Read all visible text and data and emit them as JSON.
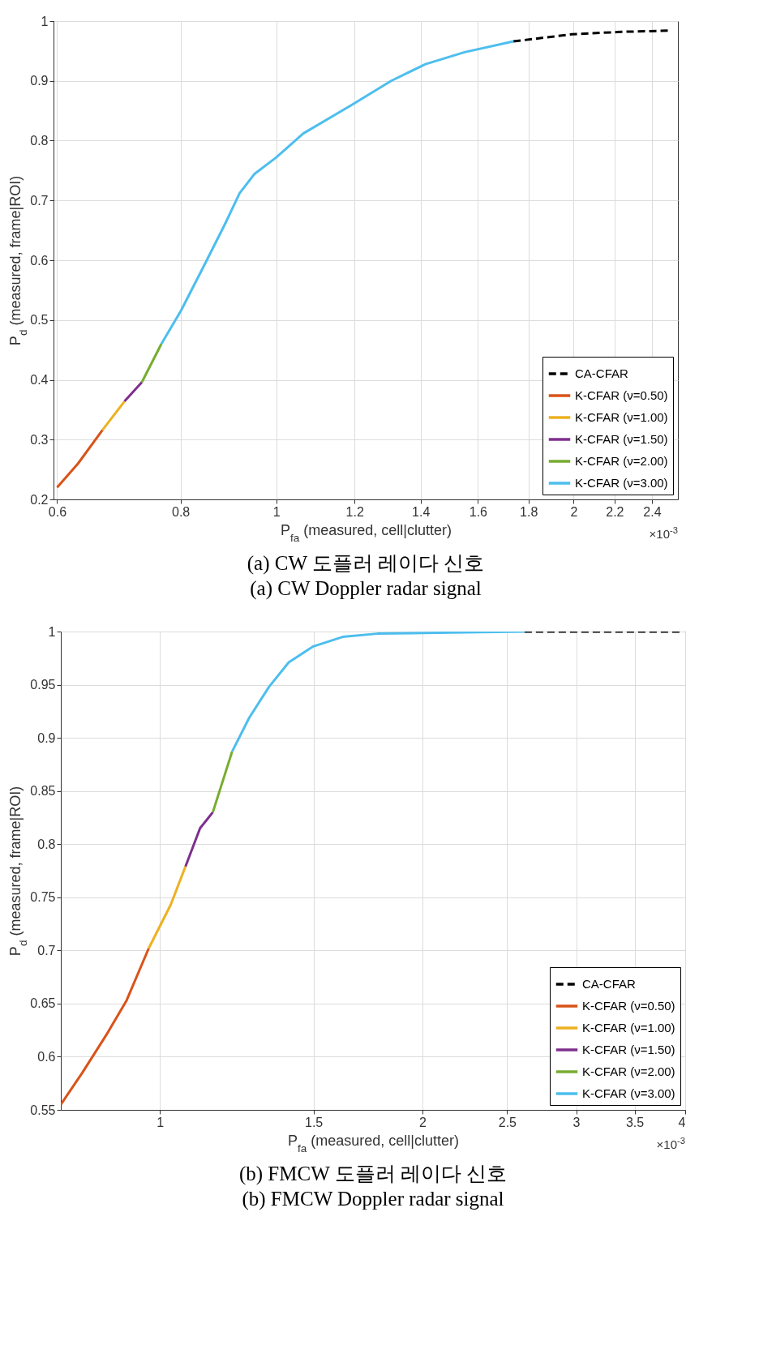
{
  "chart_data": [
    {
      "type": "line",
      "title": "(a) CW 도플러 레이다 신호",
      "subtitle": "(a) CW Doppler radar signal",
      "xlabel": "P$_{fa}$ (measured, cell|clutter)",
      "ylabel": "P$_{d}$ (measured, frame|ROI)",
      "log": "x",
      "xlim": [
        0.595,
        2.55
      ],
      "xticks": [
        0.6,
        0.8,
        1,
        1.2,
        1.4,
        1.6,
        1.8,
        2,
        2.2,
        2.4
      ],
      "ylim": [
        0.2,
        1
      ],
      "yticks": [
        0.2,
        0.3,
        0.4,
        0.5,
        0.6,
        0.7,
        0.8,
        0.9,
        1
      ],
      "grid": true,
      "legend": "bottom right",
      "annotations": [
        "×10$^{-3}$"
      ],
      "series": [
        {
          "name": "CA-CFAR",
          "color": "#000000",
          "line_style": "dashed",
          "x": [
            1.738,
            1.993,
            2.234,
            2.503
          ],
          "values": [
            0.966,
            0.978,
            0.982,
            0.984
          ]
        },
        {
          "name": "K-CFAR (ν=0.50)",
          "color": "#d95319",
          "line_style": "solid",
          "x": [
            0.6,
            0.63,
            0.667
          ],
          "values": [
            0.22,
            0.26,
            0.316
          ]
        },
        {
          "name": "K-CFAR (ν=1.00)",
          "color": "#edb120",
          "line_style": "solid",
          "x": [
            0.667,
            0.702
          ],
          "values": [
            0.316,
            0.364
          ]
        },
        {
          "name": "K-CFAR (ν=1.50)",
          "color": "#7e2f8e",
          "line_style": "solid",
          "x": [
            0.702,
            0.731
          ],
          "values": [
            0.364,
            0.396
          ]
        },
        {
          "name": "K-CFAR (ν=2.00)",
          "color": "#77ac30",
          "line_style": "solid",
          "x": [
            0.731,
            0.765
          ],
          "values": [
            0.396,
            0.46
          ]
        },
        {
          "name": "K-CFAR (ν=3.00)",
          "color": "#4dbeee",
          "line_style": "solid",
          "x": [
            0.765,
            0.801,
            0.848,
            0.887,
            0.918,
            0.95,
            1.0,
            1.065,
            1.193,
            1.307,
            1.416,
            1.551,
            1.738
          ],
          "values": [
            0.46,
            0.516,
            0.596,
            0.66,
            0.712,
            0.744,
            0.772,
            0.812,
            0.86,
            0.9,
            0.928,
            0.948,
            0.966
          ]
        }
      ]
    },
    {
      "type": "line",
      "title": "(b) FMCW 도플러 레이다 신호",
      "subtitle": "(b) FMCW Doppler radar signal",
      "xlabel": "P$_{fa}$ (measured, cell|clutter)",
      "ylabel": "P$_{d}$ (measured, frame|ROI)",
      "log": "x",
      "xlim": [
        0.77,
        4
      ],
      "xticks": [
        1,
        1.5,
        2,
        2.5,
        3,
        3.5,
        4
      ],
      "ylim": [
        0.55,
        1
      ],
      "yticks": [
        0.55,
        0.6,
        0.65,
        0.7,
        0.75,
        0.8,
        0.85,
        0.9,
        0.95,
        1
      ],
      "grid": true,
      "legend": "bottom right",
      "annotations": [
        "×10$^{-3}$"
      ],
      "series": [
        {
          "name": "CA-CFAR",
          "color": "#000000",
          "line_style": "dashed",
          "x": [
            2.618,
            3.97
          ],
          "values": [
            1.0,
            1.0
          ]
        },
        {
          "name": "K-CFAR (ν=0.50)",
          "color": "#d95319",
          "line_style": "solid",
          "x": [
            0.77,
            0.815,
            0.869,
            0.916,
            0.971
          ],
          "values": [
            0.555,
            0.585,
            0.621,
            0.653,
            0.702
          ]
        },
        {
          "name": "K-CFAR (ν=1.00)",
          "color": "#edb120",
          "line_style": "solid",
          "x": [
            0.971,
            1.029,
            1.07
          ],
          "values": [
            0.702,
            0.743,
            0.779
          ]
        },
        {
          "name": "K-CFAR (ν=1.50)",
          "color": "#7e2f8e",
          "line_style": "solid",
          "x": [
            1.07,
            1.112,
            1.15
          ],
          "values": [
            0.779,
            0.815,
            0.83
          ]
        },
        {
          "name": "K-CFAR (ν=2.00)",
          "color": "#77ac30",
          "line_style": "solid",
          "x": [
            1.15,
            1.21
          ],
          "values": [
            0.83,
            0.887
          ]
        },
        {
          "name": "K-CFAR (ν=3.00)",
          "color": "#4dbeee",
          "line_style": "solid",
          "x": [
            1.21,
            1.266,
            1.334,
            1.405,
            1.499,
            1.62,
            1.775,
            2.157,
            2.618
          ],
          "values": [
            0.887,
            0.919,
            0.948,
            0.971,
            0.986,
            0.995,
            0.998,
            0.999,
            1.0
          ]
        }
      ]
    }
  ]
}
